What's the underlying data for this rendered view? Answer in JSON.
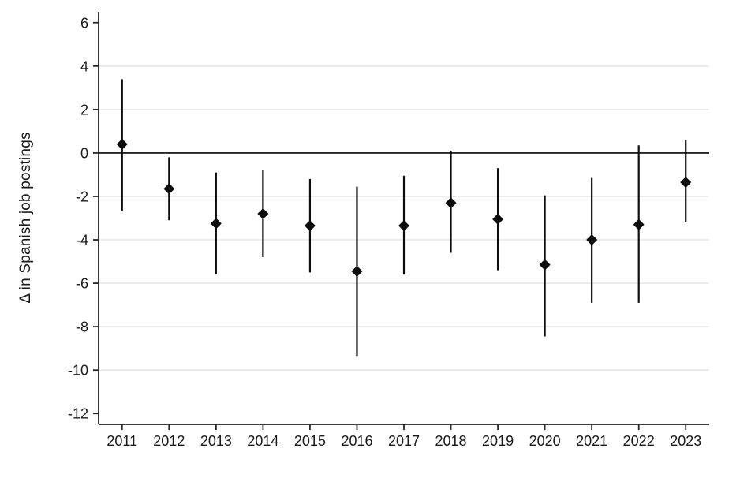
{
  "chart_data": {
    "type": "scatter",
    "subtype": "coefficient-plot-with-confidence-intervals",
    "title": "",
    "xlabel": "",
    "ylabel": "Δ in Spanish job postings",
    "categories": [
      "2011",
      "2012",
      "2013",
      "2014",
      "2015",
      "2016",
      "2017",
      "2018",
      "2019",
      "2020",
      "2021",
      "2022",
      "2023"
    ],
    "series": [
      {
        "name": "point-estimate",
        "values": [
          0.4,
          -1.65,
          -3.25,
          -2.8,
          -3.35,
          -5.45,
          -3.35,
          -2.3,
          -3.05,
          -5.15,
          -4.0,
          -3.3,
          -1.35
        ]
      },
      {
        "name": "ci-lower",
        "values": [
          -2.65,
          -3.1,
          -5.6,
          -4.8,
          -5.5,
          -9.35,
          -5.6,
          -4.6,
          -5.4,
          -8.45,
          -6.9,
          -6.9,
          -3.2
        ]
      },
      {
        "name": "ci-upper",
        "values": [
          3.4,
          -0.2,
          -0.9,
          -0.8,
          -1.2,
          -1.55,
          -1.05,
          0.1,
          -0.7,
          -1.95,
          -1.15,
          0.35,
          0.6
        ]
      }
    ],
    "ylim": [
      -12.5,
      6.5
    ],
    "yticks": [
      6,
      4,
      2,
      0,
      -2,
      -4,
      -6,
      -8,
      -10,
      -12
    ],
    "gridline_values": [
      4,
      2,
      -2,
      -4,
      -6,
      -8,
      -10
    ],
    "zero_line": 0,
    "grid": true,
    "legend": "none",
    "marker": "diamond",
    "colors": {
      "marker": "#0d0d0d",
      "ci_line": "#0d0d0d",
      "axis": "#262626",
      "zero_line": "#262626",
      "gridline": "#e2e2e2",
      "text": "#1a1a1a",
      "background": "#ffffff"
    }
  }
}
